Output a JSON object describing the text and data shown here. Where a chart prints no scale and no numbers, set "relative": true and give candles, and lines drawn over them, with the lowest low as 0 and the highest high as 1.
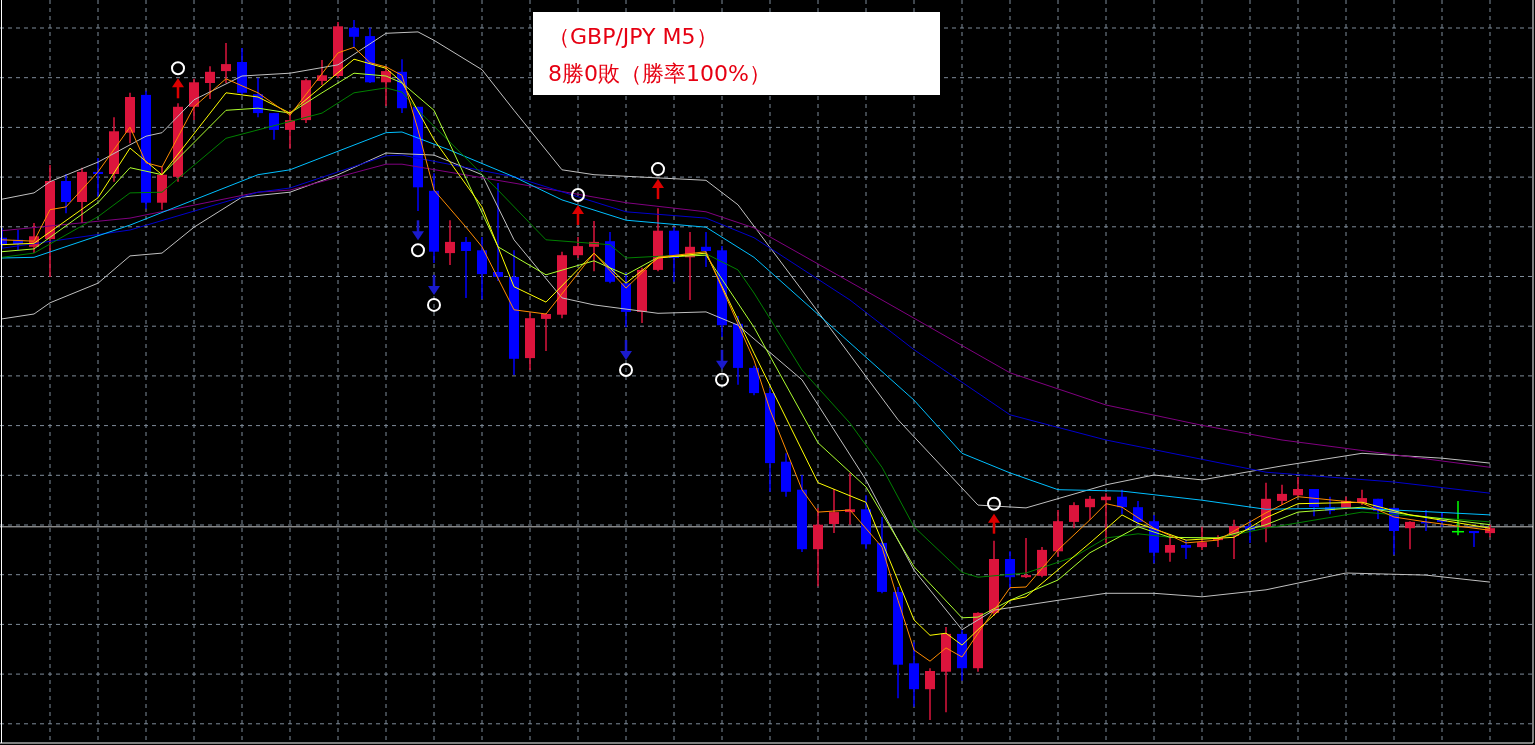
{
  "chart_data": {
    "type": "candlestick",
    "title": "（GBP/JPY M5）",
    "subtitle": "8勝0敗（勝率100%）",
    "relative": true,
    "grid": true,
    "categories": [
      null,
      null,
      null,
      null,
      null,
      null,
      null,
      null,
      null,
      null,
      null,
      null,
      null,
      null,
      null,
      null,
      null,
      null,
      null,
      null,
      null,
      null,
      null,
      null,
      null,
      null,
      null,
      null,
      null,
      null,
      null,
      null,
      null,
      null,
      null,
      null,
      null,
      null,
      null,
      null,
      null,
      null,
      null,
      null,
      null,
      null,
      null,
      null,
      null,
      null,
      null,
      null,
      null,
      null,
      null,
      null,
      null,
      null,
      null,
      null,
      null,
      null,
      null,
      null,
      null,
      null,
      null,
      null,
      null,
      null,
      null,
      null,
      null,
      null,
      null,
      null,
      null,
      null,
      null,
      null,
      null,
      null,
      null,
      null,
      null,
      null,
      null,
      null,
      null,
      null,
      null,
      null,
      null,
      null
    ],
    "ohlc": [
      [
        0.689,
        0.703,
        0.674,
        0.679
      ],
      [
        0.686,
        0.7,
        0.671,
        0.68
      ],
      [
        0.676,
        0.71,
        0.667,
        0.691
      ],
      [
        0.687,
        0.793,
        0.633,
        0.77
      ],
      [
        0.77,
        0.78,
        0.724,
        0.74
      ],
      [
        0.74,
        0.789,
        0.71,
        0.783
      ],
      [
        0.783,
        0.803,
        0.747,
        0.78
      ],
      [
        0.78,
        0.861,
        0.769,
        0.841
      ],
      [
        0.839,
        0.896,
        0.824,
        0.89
      ],
      [
        0.893,
        0.899,
        0.73,
        0.739
      ],
      [
        0.739,
        0.79,
        0.729,
        0.779
      ],
      [
        0.776,
        0.881,
        0.769,
        0.876
      ],
      [
        0.876,
        0.916,
        0.857,
        0.911
      ],
      [
        0.91,
        0.934,
        0.887,
        0.926
      ],
      [
        0.927,
        0.967,
        0.91,
        0.937
      ],
      [
        0.94,
        0.96,
        0.893,
        0.896
      ],
      [
        0.894,
        0.917,
        0.861,
        0.867
      ],
      [
        0.867,
        0.867,
        0.829,
        0.843
      ],
      [
        0.843,
        0.871,
        0.816,
        0.857
      ],
      [
        0.857,
        0.916,
        0.853,
        0.914
      ],
      [
        0.913,
        0.943,
        0.907,
        0.921
      ],
      [
        0.92,
        0.997,
        0.917,
        0.991
      ],
      [
        0.989,
        1,
        0.961,
        0.976
      ],
      [
        0.977,
        0.989,
        0.91,
        0.911
      ],
      [
        0.911,
        0.934,
        0.877,
        0.927
      ],
      [
        0.926,
        0.944,
        0.867,
        0.874
      ],
      [
        0.876,
        0.876,
        0.727,
        0.761
      ],
      [
        0.756,
        0.781,
        0.653,
        0.669
      ],
      [
        0.667,
        0.714,
        0.65,
        0.683
      ],
      [
        0.683,
        0.69,
        0.603,
        0.67
      ],
      [
        0.671,
        0.69,
        0.601,
        0.637
      ],
      [
        0.64,
        0.767,
        0.627,
        0.633
      ],
      [
        0.633,
        0.671,
        0.493,
        0.516
      ],
      [
        0.517,
        0.581,
        0.5,
        0.574
      ],
      [
        0.573,
        0.581,
        0.527,
        0.58
      ],
      [
        0.579,
        0.669,
        0.574,
        0.664
      ],
      [
        0.664,
        0.69,
        0.66,
        0.677
      ],
      [
        0.676,
        0.713,
        0.641,
        0.683
      ],
      [
        0.684,
        0.697,
        0.624,
        0.626
      ],
      [
        0.624,
        0.639,
        0.561,
        0.583
      ],
      [
        0.583,
        0.646,
        0.567,
        0.643
      ],
      [
        0.643,
        0.731,
        0.641,
        0.699
      ],
      [
        0.699,
        0.704,
        0.626,
        0.66
      ],
      [
        0.661,
        0.697,
        0.6,
        0.676
      ],
      [
        0.676,
        0.697,
        0.647,
        0.67
      ],
      [
        0.671,
        0.677,
        0.547,
        0.564
      ],
      [
        0.566,
        0.577,
        0.479,
        0.503
      ],
      [
        0.503,
        0.506,
        0.464,
        0.467
      ],
      [
        0.467,
        0.474,
        0.326,
        0.367
      ],
      [
        0.369,
        0.381,
        0.319,
        0.326
      ],
      [
        0.329,
        0.35,
        0.24,
        0.244
      ],
      [
        0.244,
        0.303,
        0.191,
        0.279
      ],
      [
        0.28,
        0.33,
        0.267,
        0.297
      ],
      [
        0.297,
        0.353,
        0.279,
        0.301
      ],
      [
        0.301,
        0.321,
        0.244,
        0.251
      ],
      [
        0.253,
        0.29,
        0.181,
        0.183
      ],
      [
        0.183,
        0.19,
        0.031,
        0.079
      ],
      [
        0.081,
        0.111,
        0.019,
        0.044
      ],
      [
        0.044,
        0.074,
        0,
        0.07
      ],
      [
        0.069,
        0.133,
        0.011,
        0.123
      ],
      [
        0.123,
        0.129,
        0.056,
        0.074
      ],
      [
        0.074,
        0.154,
        0.069,
        0.153
      ],
      [
        0.153,
        0.256,
        0.149,
        0.23
      ],
      [
        0.23,
        0.241,
        0.186,
        0.204
      ],
      [
        0.204,
        0.26,
        0.203,
        0.207
      ],
      [
        0.206,
        0.247,
        0.204,
        0.243
      ],
      [
        0.241,
        0.3,
        0.233,
        0.284
      ],
      [
        0.283,
        0.311,
        0.274,
        0.307
      ],
      [
        0.304,
        0.32,
        0.286,
        0.316
      ],
      [
        0.314,
        0.324,
        0.253,
        0.319
      ],
      [
        0.319,
        0.329,
        0.294,
        0.304
      ],
      [
        0.304,
        0.313,
        0.279,
        0.283
      ],
      [
        0.284,
        0.293,
        0.224,
        0.239
      ],
      [
        0.239,
        0.264,
        0.226,
        0.25
      ],
      [
        0.25,
        0.257,
        0.23,
        0.246
      ],
      [
        0.247,
        0.276,
        0.243,
        0.254
      ],
      [
        0.257,
        0.264,
        0.247,
        0.26
      ],
      [
        0.263,
        0.286,
        0.23,
        0.277
      ],
      [
        0.277,
        0.286,
        0.253,
        0.271
      ],
      [
        0.276,
        0.339,
        0.254,
        0.316
      ],
      [
        0.313,
        0.336,
        0.307,
        0.323
      ],
      [
        0.321,
        0.347,
        0.32,
        0.33
      ],
      [
        0.33,
        0.33,
        0.291,
        0.304
      ],
      [
        0.304,
        0.319,
        0.294,
        0.299
      ],
      [
        0.303,
        0.319,
        0.301,
        0.313
      ],
      [
        0.31,
        0.329,
        0.307,
        0.317
      ],
      [
        0.316,
        0.316,
        0.287,
        0.299
      ],
      [
        0.303,
        0.303,
        0.236,
        0.27
      ],
      [
        0.274,
        0.284,
        0.244,
        0.283
      ],
      [
        0.283,
        0.3,
        0.27,
        0.281
      ],
      [
        0.286,
        0.296,
        0.276,
        0.283
      ],
      [
        0.269,
        0.313,
        0.264,
        0.269
      ],
      [
        0.27,
        0.27,
        0.247,
        0.267
      ],
      [
        0.267,
        0.279,
        0.261,
        0.274
      ]
    ],
    "colors": [
      "#0000ff",
      "#0000ff",
      "#dc143c",
      "#dc143c",
      "#0000ff",
      "#dc143c",
      "#0000ff",
      "#dc143c",
      "#dc143c",
      "#0000ff",
      "#dc143c",
      "#dc143c",
      "#dc143c",
      "#dc143c",
      "#dc143c",
      "#0000ff",
      "#0000ff",
      "#0000ff",
      "#dc143c",
      "#dc143c",
      "#dc143c",
      "#dc143c",
      "#0000ff",
      "#0000ff",
      "#dc143c",
      "#0000ff",
      "#0000ff",
      "#0000ff",
      "#dc143c",
      "#0000ff",
      "#0000ff",
      "#0000ff",
      "#0000ff",
      "#dc143c",
      "#dc143c",
      "#dc143c",
      "#dc143c",
      "#dc143c",
      "#0000ff",
      "#0000ff",
      "#dc143c",
      "#dc143c",
      "#0000ff",
      "#dc143c",
      "#0000ff",
      "#0000ff",
      "#0000ff",
      "#0000ff",
      "#0000ff",
      "#0000ff",
      "#0000ff",
      "#dc143c",
      "#dc143c",
      "#dc143c",
      "#0000ff",
      "#0000ff",
      "#0000ff",
      "#0000ff",
      "#dc143c",
      "#dc143c",
      "#0000ff",
      "#dc143c",
      "#dc143c",
      "#0000ff",
      "#dc143c",
      "#dc143c",
      "#dc143c",
      "#dc143c",
      "#dc143c",
      "#dc143c",
      "#0000ff",
      "#0000ff",
      "#0000ff",
      "#dc143c",
      "#0000ff",
      "#dc143c",
      "#dc143c",
      "#dc143c",
      "#0000ff",
      "#dc143c",
      "#dc143c",
      "#dc143c",
      "#0000ff",
      "#0000ff",
      "#dc143c",
      "#dc143c",
      "#0000ff",
      "#0000ff",
      "#dc143c",
      "#0000ff",
      "#0000ff",
      "#00ff00",
      "#0000ff",
      "#dc143c"
    ],
    "ref_lines": [
      {
        "axis": "y",
        "value": 0.276,
        "color": "#c0c0c0"
      }
    ],
    "series": [
      {
        "type": "line",
        "color": "#c0c0c0",
        "values": [
          0.744,
          null,
          0.753,
          0.769,
          null,
          null,
          0.797,
          null,
          null,
          0.834,
          0.839,
          null,
          0.886,
          null,
          null,
          0.92,
          null,
          null,
          0.924,
          null,
          null,
          0.936,
          null,
          null,
          0.981,
          null,
          0.983,
          0.971,
          null,
          null,
          0.929,
          null,
          0.871,
          null,
          null,
          0.786,
          null,
          0.779,
          null,
          null,
          null,
          null,
          null,
          null,
          0.771,
          null,
          0.736,
          null,
          null,
          null,
          0.614,
          null,
          null,
          null,
          null,
          null,
          0.429,
          null,
          null,
          null,
          null,
          0.307,
          null,
          null,
          0.303,
          null,
          null,
          null,
          null,
          0.336,
          null,
          null,
          0.35,
          null,
          null,
          0.343,
          null,
          null,
          null,
          null,
          0.363,
          null,
          null,
          null,
          null,
          0.381,
          null,
          null,
          null,
          null,
          0.374,
          null,
          null,
          0.367
        ]
      },
      {
        "type": "line",
        "color": "#c0c0c0",
        "values": [
          0.573,
          null,
          0.58,
          0.596,
          null,
          null,
          0.624,
          null,
          0.663,
          null,
          0.667,
          null,
          0.704,
          null,
          null,
          0.747,
          null,
          null,
          0.754,
          null,
          null,
          0.779,
          null,
          null,
          0.81,
          null,
          null,
          0.807,
          null,
          null,
          0.779,
          null,
          0.686,
          null,
          null,
          0.603,
          null,
          0.593,
          null,
          null,
          null,
          0.581,
          null,
          null,
          0.583,
          null,
          0.564,
          null,
          null,
          null,
          0.486,
          null,
          null,
          null,
          0.343,
          null,
          null,
          0.214,
          null,
          null,
          0.129,
          null,
          0.157,
          null,
          null,
          null,
          0.171,
          null,
          null,
          0.181,
          null,
          null,
          0.181,
          null,
          null,
          0.176,
          null,
          null,
          null,
          0.186,
          null,
          null,
          null,
          null,
          0.21,
          null,
          null,
          null,
          null,
          0.207,
          null,
          null,
          null,
          0.197
        ]
      },
      {
        "type": "line",
        "color": "#800080",
        "values": [
          0.699,
          null,
          null,
          null,
          null,
          null,
          null,
          null,
          0.717,
          null,
          null,
          null,
          null,
          null,
          null,
          null,
          0.754,
          null,
          0.757,
          null,
          null,
          null,
          null,
          null,
          0.794,
          0.794,
          null,
          null,
          null,
          null,
          null,
          null,
          0.767,
          null,
          null,
          null,
          null,
          null,
          null,
          0.739,
          null,
          null,
          null,
          null,
          0.726,
          null,
          null,
          0.703,
          null,
          null,
          null,
          null,
          null,
          null,
          null,
          0.6,
          null,
          null,
          null,
          null,
          null,
          null,
          null,
          0.496,
          null,
          null,
          null,
          null,
          null,
          0.45,
          null,
          null,
          null,
          null,
          null,
          0.421,
          null,
          null,
          null,
          null,
          0.4,
          null,
          null,
          null,
          null,
          null,
          null,
          0.379,
          null,
          null,
          null,
          null,
          null,
          0.361
        ]
      },
      {
        "type": "line",
        "color": "#0000cd",
        "values": [
          0.674,
          null,
          null,
          null,
          null,
          null,
          null,
          null,
          0.7,
          null,
          null,
          null,
          null,
          null,
          null,
          null,
          0.754,
          null,
          0.76,
          null,
          null,
          null,
          null,
          null,
          0.806,
          0.807,
          null,
          null,
          null,
          null,
          null,
          null,
          0.776,
          null,
          null,
          null,
          null,
          null,
          null,
          0.726,
          null,
          null,
          null,
          null,
          0.717,
          null,
          null,
          0.689,
          null,
          null,
          null,
          null,
          null,
          0.6,
          null,
          null,
          null,
          0.529,
          null,
          null,
          null,
          null,
          null,
          0.436,
          null,
          null,
          null,
          null,
          null,
          0.4,
          null,
          null,
          null,
          null,
          null,
          null,
          null,
          null,
          null,
          0.354,
          null,
          null,
          null,
          null,
          null,
          null,
          null,
          0.34,
          null,
          null,
          null,
          null,
          null,
          0.324
        ]
      },
      {
        "type": "line",
        "color": "#00bfff",
        "values": [
          0.66,
          null,
          0.661,
          null,
          null,
          null,
          null,
          null,
          0.707,
          null,
          null,
          null,
          null,
          null,
          null,
          null,
          0.779,
          null,
          0.786,
          null,
          null,
          null,
          null,
          null,
          0.839,
          0.84,
          null,
          null,
          0.814,
          null,
          null,
          null,
          0.776,
          null,
          null,
          0.743,
          null,
          null,
          null,
          0.714,
          null,
          null,
          null,
          null,
          0.704,
          null,
          null,
          0.661,
          null,
          null,
          0.6,
          null,
          null,
          null,
          null,
          null,
          null,
          0.457,
          null,
          null,
          0.381,
          null,
          null,
          0.353,
          null,
          null,
          0.329,
          null,
          null,
          null,
          0.327,
          null,
          null,
          null,
          null,
          0.314,
          null,
          null,
          null,
          0.301,
          null,
          null,
          null,
          null,
          0.303,
          null,
          null,
          0.3,
          null,
          null,
          null,
          null,
          null,
          0.293
        ]
      },
      {
        "type": "line",
        "color": "#008000",
        "values": [
          0.661,
          null,
          0.667,
          null,
          null,
          null,
          0.719,
          null,
          0.753,
          null,
          0.754,
          null,
          null,
          null,
          0.831,
          null,
          0.843,
          null,
          null,
          null,
          0.867,
          null,
          0.896,
          null,
          0.903,
          0.897,
          0.871,
          null,
          null,
          null,
          null,
          0.757,
          null,
          null,
          0.686,
          null,
          null,
          null,
          0.679,
          0.66,
          null,
          null,
          null,
          null,
          0.666,
          null,
          0.643,
          0.61,
          null,
          null,
          0.5,
          null,
          null,
          0.424,
          null,
          0.361,
          null,
          0.276,
          null,
          null,
          0.211,
          0.204,
          null,
          null,
          0.21,
          null,
          null,
          0.233,
          null,
          0.26,
          null,
          0.266,
          null,
          0.261,
          null,
          null,
          0.26,
          null,
          null,
          0.274,
          null,
          null,
          null,
          null,
          null,
          0.297,
          null,
          null,
          null,
          0.29,
          null,
          null,
          null,
          0.283
        ]
      },
      {
        "type": "line",
        "color": "#adff2f",
        "values": [
          0.669,
          null,
          0.673,
          null,
          null,
          null,
          0.739,
          null,
          0.789,
          null,
          0.779,
          null,
          null,
          null,
          0.871,
          null,
          0.874,
          null,
          0.867,
          null,
          0.896,
          null,
          0.924,
          null,
          0.92,
          0.91,
          null,
          0.871,
          null,
          null,
          null,
          0.676,
          null,
          null,
          0.636,
          null,
          null,
          0.656,
          null,
          0.636,
          null,
          0.661,
          null,
          null,
          0.664,
          null,
          null,
          0.561,
          null,
          null,
          null,
          0.396,
          null,
          null,
          0.333,
          null,
          null,
          0.219,
          null,
          null,
          0.146,
          0.147,
          null,
          0.171,
          null,
          null,
          0.2,
          null,
          0.239,
          null,
          null,
          0.276,
          null,
          0.261,
          null,
          null,
          0.26,
          null,
          null,
          0.279,
          null,
          0.297,
          null,
          null,
          null,
          0.304,
          null,
          null,
          0.293,
          null,
          null,
          null,
          null,
          0.279
        ]
      },
      {
        "type": "line",
        "color": "#ffff00",
        "values": [
          0.679,
          null,
          0.681,
          null,
          null,
          null,
          0.746,
          null,
          0.817,
          null,
          0.779,
          null,
          null,
          null,
          0.896,
          null,
          0.89,
          null,
          0.867,
          null,
          null,
          null,
          0.944,
          null,
          0.931,
          0.911,
          null,
          0.829,
          null,
          null,
          0.733,
          null,
          0.619,
          null,
          0.597,
          null,
          null,
          0.667,
          null,
          0.624,
          null,
          0.66,
          null,
          null,
          0.667,
          null,
          null,
          0.524,
          null,
          null,
          null,
          0.339,
          null,
          null,
          0.311,
          null,
          null,
          0.143,
          0.121,
          0.124,
          0.107,
          0.129,
          null,
          0.171,
          0.176,
          null,
          null,
          null,
          0.253,
          null,
          0.293,
          0.281,
          null,
          null,
          0.257,
          null,
          null,
          0.261,
          null,
          0.289,
          null,
          0.309,
          null,
          null,
          null,
          0.311,
          null,
          null,
          0.293,
          null,
          null,
          null,
          null,
          0.274
        ]
      },
      {
        "type": "line",
        "color": "#ff8c00",
        "values": [
          0.686,
          null,
          0.684,
          0.729,
          0.733,
          null,
          0.783,
          null,
          0.847,
          0.796,
          0.79,
          null,
          0.876,
          null,
          0.916,
          null,
          0.896,
          null,
          0.864,
          null,
          null,
          0.953,
          0.961,
          0.939,
          0.933,
          0.921,
          0.843,
          0.757,
          null,
          0.704,
          0.676,
          null,
          0.586,
          null,
          0.58,
          null,
          null,
          0.667,
          null,
          0.617,
          null,
          0.661,
          null,
          null,
          0.669,
          null,
          null,
          0.514,
          0.443,
          null,
          0.329,
          0.297,
          null,
          0.3,
          null,
          0.247,
          0.171,
          0.1,
          0.084,
          0.103,
          0.09,
          0.124,
          null,
          0.189,
          0.19,
          null,
          0.243,
          null,
          0.286,
          0.309,
          0.304,
          null,
          0.274,
          null,
          0.253,
          null,
          0.257,
          null,
          null,
          0.296,
          null,
          0.319,
          null,
          null,
          null,
          0.31,
          null,
          0.29,
          null,
          0.283,
          null,
          null,
          null,
          0.271
        ]
      },
      {
        "type": "scatter",
        "marker": "circle",
        "color": "#ffffff",
        "values": [
          null,
          null,
          null,
          null,
          null,
          null,
          null,
          null,
          null,
          null,
          null,
          0.931,
          null,
          null,
          null,
          null,
          null,
          null,
          null,
          null,
          null,
          null,
          null,
          null,
          null,
          null,
          0.671,
          0.593,
          null,
          null,
          null,
          null,
          null,
          null,
          null,
          null,
          0.75,
          null,
          null,
          0.5,
          null,
          0.787,
          null,
          null,
          null,
          0.486,
          null,
          null,
          null,
          null,
          null,
          null,
          null,
          null,
          null,
          null,
          null,
          null,
          null,
          null,
          null,
          null,
          0.309,
          null,
          null,
          null,
          null,
          null,
          null,
          null,
          null,
          null,
          null,
          null,
          null,
          null,
          null,
          null,
          null,
          null,
          null,
          null,
          null,
          null,
          null,
          null,
          null,
          null,
          null,
          null,
          null,
          null,
          null,
          null
        ]
      }
    ]
  }
}
